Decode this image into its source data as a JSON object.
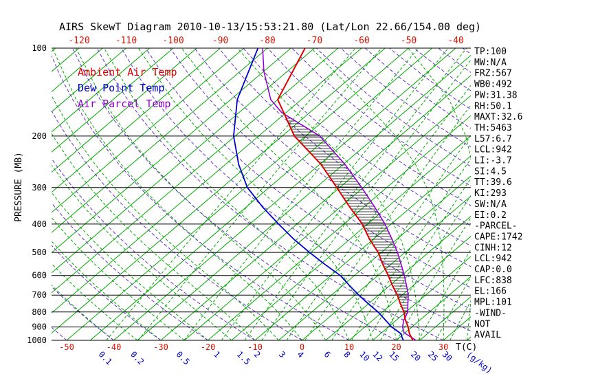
{
  "title": "AIRS SkewT Diagram 2010-10-13/15:53:21.80 (Lat/Lon 22.66/154.00 deg)",
  "legend": {
    "ambient": "Ambient Air Temp",
    "dewpoint": "Dew Point Temp",
    "parcel": "Air Parcel Temp"
  },
  "colors": {
    "isotherm": "#00aa00",
    "dry_adiabat": "#6633cc",
    "hatch": "#000000",
    "axis_text": "#000000",
    "temp_label": "#dd1100",
    "mixing_label": "#0000cc"
  },
  "stats_panel": [
    "TP:100",
    "MW:N/A",
    "FRZ:567",
    "WB0:492",
    "PW:31.38",
    "RH:50.1",
    "MAXT:32.6",
    "TH:5463",
    "L57:6.7",
    "LCL:942",
    "LI:-3.7",
    "SI:4.5",
    "TT:39.6",
    "KI:293",
    "SW:N/A",
    "EI:0.2",
    "-PARCEL-",
    "CAPE:1742",
    "CINH:12",
    "LCL:942",
    "CAP:0.0",
    "LFC:838",
    "EL:166",
    "MPL:101",
    "-WIND-",
    "NOT",
    "AVAIL"
  ],
  "chart_data": {
    "type": "line",
    "y_axis": {
      "label": "PRESSURE (MB)",
      "scale": "log",
      "ticks": [
        100,
        200,
        300,
        400,
        500,
        600,
        700,
        800,
        900,
        1000
      ],
      "range_mb": [
        100,
        1000
      ]
    },
    "x_axis": {
      "label": "T(C)",
      "skewed": true,
      "top_ticks_C": [
        -120,
        -110,
        -100,
        -90,
        -80,
        -70,
        -60,
        -50,
        -40
      ],
      "bottom_ticks_C": [
        -50,
        -40,
        -30,
        -20,
        -10,
        0,
        10,
        20,
        30
      ]
    },
    "mixing_ratio_axis": {
      "unit": "(g/kg)",
      "ticks_g_kg": [
        0.1,
        0.2,
        0.5,
        1,
        1.5,
        2,
        3,
        4,
        6,
        8,
        10,
        12,
        15,
        20,
        25,
        30
      ]
    },
    "grid": {
      "isotherms_C": {
        "min": -130,
        "max": 35,
        "step": 5
      },
      "dry_adiabats_theta_C": {
        "min": -50,
        "max": 180,
        "step": 10
      },
      "moist_adiabats_thetaw_C": {
        "min": -40,
        "max": 60,
        "step": 5
      }
    },
    "series": [
      {
        "name": "Ambient Air Temp",
        "color": "#dd0000",
        "points_mb_C": [
          [
            1000,
            23.5
          ],
          [
            975,
            22.4
          ],
          [
            950,
            21.2
          ],
          [
            925,
            20.2
          ],
          [
            900,
            19.2
          ],
          [
            850,
            16.8
          ],
          [
            800,
            14.6
          ],
          [
            750,
            11.8
          ],
          [
            700,
            9.0
          ],
          [
            650,
            5.6
          ],
          [
            600,
            2.2
          ],
          [
            550,
            -1.7
          ],
          [
            500,
            -5.7
          ],
          [
            450,
            -10.9
          ],
          [
            400,
            -16.1
          ],
          [
            350,
            -23.0
          ],
          [
            300,
            -30.6
          ],
          [
            250,
            -39.7
          ],
          [
            200,
            -52.4
          ],
          [
            150,
            -65.0
          ],
          [
            100,
            -72.0
          ]
        ]
      },
      {
        "name": "Dew Point Temp",
        "color": "#0000cc",
        "points_mb_C": [
          [
            1000,
            21.5
          ],
          [
            975,
            20.4
          ],
          [
            950,
            19.4
          ],
          [
            925,
            17.6
          ],
          [
            900,
            15.7
          ],
          [
            850,
            12.5
          ],
          [
            800,
            9.1
          ],
          [
            750,
            5.0
          ],
          [
            700,
            0.8
          ],
          [
            650,
            -3.5
          ],
          [
            600,
            -8.0
          ],
          [
            550,
            -14.0
          ],
          [
            500,
            -20.3
          ],
          [
            450,
            -27.0
          ],
          [
            400,
            -33.9
          ],
          [
            350,
            -41.5
          ],
          [
            300,
            -49.6
          ],
          [
            250,
            -57.2
          ],
          [
            200,
            -65.3
          ],
          [
            150,
            -73.6
          ],
          [
            100,
            -82.0
          ]
        ]
      },
      {
        "name": "Air Parcel Temp",
        "color": "#9400d3",
        "points_mb_C": [
          [
            1000,
            24.2
          ],
          [
            942,
            19.8
          ],
          [
            900,
            18.0
          ],
          [
            850,
            16.5
          ],
          [
            838,
            16.3
          ],
          [
            800,
            15.4
          ],
          [
            750,
            13.4
          ],
          [
            700,
            11.3
          ],
          [
            650,
            8.6
          ],
          [
            600,
            5.6
          ],
          [
            550,
            2.2
          ],
          [
            500,
            -1.6
          ],
          [
            450,
            -6.1
          ],
          [
            400,
            -11.3
          ],
          [
            350,
            -17.7
          ],
          [
            300,
            -25.3
          ],
          [
            250,
            -34.6
          ],
          [
            200,
            -47.0
          ],
          [
            166,
            -61.0
          ],
          [
            150,
            -66.5
          ],
          [
            120,
            -75.0
          ],
          [
            100,
            -81.0
          ]
        ]
      }
    ],
    "cape_hatch": {
      "top_mb": 166,
      "bottom_mb": 838
    },
    "indices": {
      "TP": "100",
      "MW": "N/A",
      "FRZ": "567",
      "WB0": "492",
      "PW": "31.38",
      "RH": "50.1",
      "MAXT": "32.6",
      "TH": "5463",
      "L57": "6.7",
      "LCL": "942",
      "LI": "-3.7",
      "SI": "4.5",
      "TT": "39.6",
      "KI": "293",
      "SW": "N/A",
      "EI": "0.2",
      "CAPE": "1742",
      "CINH": "12",
      "CAP": "0.0",
      "LFC": "838",
      "EL": "166",
      "MPL": "101",
      "WIND": "NOT AVAIL"
    }
  }
}
